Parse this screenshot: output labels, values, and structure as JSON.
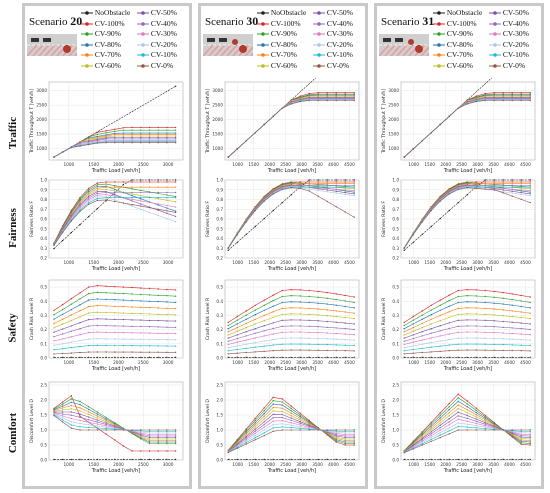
{
  "row_labels": [
    "Traffic",
    "Fairness",
    "Safety",
    "Comfort"
  ],
  "scenario_prefix": "Scenario",
  "legend": [
    {
      "name": "NoObstacle",
      "color": "#222222"
    },
    {
      "name": "CV-50%",
      "color": "#7b4fa8"
    },
    {
      "name": "CV-100%",
      "color": "#d62728"
    },
    {
      "name": "CV-40%",
      "color": "#9467bd"
    },
    {
      "name": "CV-90%",
      "color": "#2ca02c"
    },
    {
      "name": "CV-30%",
      "color": "#e377c2"
    },
    {
      "name": "CV-80%",
      "color": "#1f77b4"
    },
    {
      "name": "CV-20%",
      "color": "#aec7e8"
    },
    {
      "name": "CV-70%",
      "color": "#ff7f0e"
    },
    {
      "name": "CV-10%",
      "color": "#17becf"
    },
    {
      "name": "CV-60%",
      "color": "#bcbd22"
    },
    {
      "name": "CV-0%",
      "color": "#8c564b"
    }
  ],
  "scenarios": [
    {
      "number": "20"
    },
    {
      "number": "30"
    },
    {
      "number": "31"
    }
  ],
  "chart_data": [
    {
      "type": "line",
      "scenario": "20",
      "metric": "traffic",
      "ylabel": "Traffic Throughput T [veh/h]",
      "xlabel": "Traffic Load [veh/h]",
      "xticks": [
        "1000",
        "1500",
        "2000",
        "2500",
        "3000"
      ],
      "yticks": [
        "1000",
        "1500",
        "2000",
        "2500",
        "3000"
      ],
      "xlim": [
        600,
        3300
      ],
      "ylim": [
        600,
        3300
      ],
      "no_obstacle_x": [
        600,
        3300
      ],
      "no_obstacle_y": [
        600,
        3300
      ],
      "x": [
        600,
        1000,
        1400,
        1800,
        2200,
        2600,
        3000
      ],
      "series_plateaus": [
        1750,
        1650,
        1550,
        1500,
        1450,
        1400,
        1350,
        1300,
        1280,
        1250,
        1220
      ]
    },
    {
      "type": "line",
      "scenario": "20",
      "metric": "fairness",
      "ylabel": "Fairness Ratio F",
      "xlabel": "Traffic Load [veh/h]",
      "xticks": [
        "1000",
        "1500",
        "2000",
        "2500",
        "3000"
      ],
      "yticks": [
        "0.2",
        "0.3",
        "0.4",
        "0.5",
        "0.6",
        "0.7",
        "0.8",
        "0.9",
        "1.0"
      ],
      "xlim": [
        600,
        3300
      ],
      "ylim": [
        0.2,
        1.0
      ]
    },
    {
      "type": "line",
      "scenario": "20",
      "metric": "safety",
      "ylabel": "Crash Risk Level R",
      "xlabel": "Traffic Load [veh/h]",
      "xticks": [
        "1000",
        "1500",
        "2000",
        "2500",
        "3000"
      ],
      "yticks": [
        "0.0",
        "0.1",
        "0.2",
        "0.3",
        "0.4",
        "0.5"
      ],
      "xlim": [
        600,
        3300
      ],
      "ylim": [
        0,
        0.55
      ]
    },
    {
      "type": "line",
      "scenario": "20",
      "metric": "comfort",
      "ylabel": "Discomfort Level D",
      "xlabel": "Traffic Load [veh/h]",
      "xticks": [
        "1000",
        "1500",
        "2000",
        "2500",
        "3000"
      ],
      "yticks": [
        "0.0",
        "0.5",
        "1.0",
        "1.5",
        "2.0",
        "2.5"
      ],
      "xlim": [
        600,
        3300
      ],
      "ylim": [
        0,
        2.6
      ]
    },
    {
      "type": "line",
      "scenario": "30",
      "metric": "traffic",
      "ylabel": "Traffic Throughput T [veh/h]",
      "xlabel": "Traffic Load [veh/h]",
      "xticks": [
        "1000",
        "1500",
        "2000",
        "2500",
        "3000",
        "3500",
        "4000",
        "4500"
      ],
      "yticks": [
        "1000",
        "1500",
        "2000",
        "2500",
        "3000"
      ],
      "xlim": [
        600,
        4800
      ],
      "ylim": [
        600,
        3300
      ]
    },
    {
      "type": "line",
      "scenario": "30",
      "metric": "fairness",
      "ylabel": "Fairness Ratio F",
      "xlabel": "Traffic Load [veh/h]",
      "xticks": [
        "1000",
        "1500",
        "2000",
        "2500",
        "3000",
        "3500",
        "4000",
        "4500"
      ],
      "yticks": [
        "0.2",
        "0.3",
        "0.4",
        "0.5",
        "0.6",
        "0.7",
        "0.8",
        "0.9",
        "1.0"
      ],
      "xlim": [
        600,
        4800
      ],
      "ylim": [
        0.2,
        1.0
      ]
    },
    {
      "type": "line",
      "scenario": "30",
      "metric": "safety",
      "ylabel": "Crash Risk Level R",
      "xlabel": "Traffic Load [veh/h]",
      "xticks": [
        "1000",
        "1500",
        "2000",
        "2500",
        "3000",
        "3500",
        "4000",
        "4500"
      ],
      "yticks": [
        "0.0",
        "0.1",
        "0.2",
        "0.3",
        "0.4",
        "0.5"
      ],
      "xlim": [
        600,
        4800
      ],
      "ylim": [
        0,
        0.55
      ]
    },
    {
      "type": "line",
      "scenario": "30",
      "metric": "comfort",
      "ylabel": "Discomfort Level D",
      "xlabel": "Traffic Load [veh/h]",
      "xticks": [
        "1000",
        "1500",
        "2000",
        "2500",
        "3000",
        "3500",
        "4000",
        "4500"
      ],
      "yticks": [
        "0.0",
        "0.5",
        "1.0",
        "1.5",
        "2.0",
        "2.5"
      ],
      "xlim": [
        600,
        4800
      ],
      "ylim": [
        0,
        2.6
      ]
    },
    {
      "type": "line",
      "scenario": "31",
      "metric": "traffic",
      "ylabel": "Traffic Throughput T [veh/h]",
      "xlabel": "Traffic Load [veh/h]",
      "xticks": [
        "1000",
        "1500",
        "2000",
        "2500",
        "3000",
        "3500",
        "4000",
        "4500"
      ],
      "yticks": [
        "1000",
        "1500",
        "2000",
        "2500",
        "3000"
      ],
      "xlim": [
        600,
        4800
      ],
      "ylim": [
        600,
        3300
      ]
    },
    {
      "type": "line",
      "scenario": "31",
      "metric": "fairness",
      "ylabel": "Fairness Ratio F",
      "xlabel": "Traffic Load [veh/h]",
      "xticks": [
        "1000",
        "1500",
        "2000",
        "2500",
        "3000",
        "3500",
        "4000",
        "4500"
      ],
      "yticks": [
        "0.2",
        "0.3",
        "0.4",
        "0.5",
        "0.6",
        "0.7",
        "0.8",
        "0.9",
        "1.0"
      ],
      "xlim": [
        600,
        4800
      ],
      "ylim": [
        0.2,
        1.0
      ]
    },
    {
      "type": "line",
      "scenario": "31",
      "metric": "safety",
      "ylabel": "Crash Risk Level R",
      "xlabel": "Traffic Load [veh/h]",
      "xticks": [
        "1000",
        "1500",
        "2000",
        "2500",
        "3000",
        "3500",
        "4000",
        "4500"
      ],
      "yticks": [
        "0.0",
        "0.1",
        "0.2",
        "0.3",
        "0.4",
        "0.5"
      ],
      "xlim": [
        600,
        4800
      ],
      "ylim": [
        0,
        0.55
      ]
    },
    {
      "type": "line",
      "scenario": "31",
      "metric": "comfort",
      "ylabel": "Discomfort Level D",
      "xlabel": "Traffic Load [veh/h]",
      "xticks": [
        "1000",
        "1500",
        "2000",
        "2500",
        "3000",
        "3500",
        "4000",
        "4500"
      ],
      "yticks": [
        "0.0",
        "0.5",
        "1.0",
        "1.5",
        "2.0",
        "2.5"
      ],
      "xlim": [
        600,
        4800
      ],
      "ylim": [
        0,
        2.6
      ]
    }
  ]
}
